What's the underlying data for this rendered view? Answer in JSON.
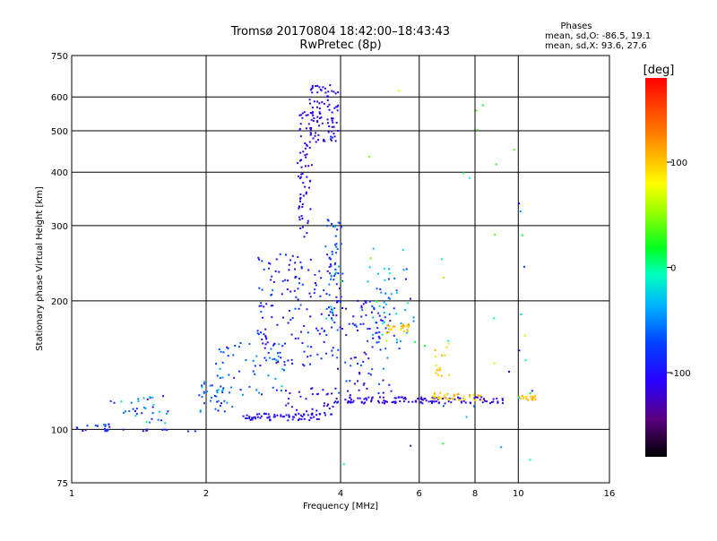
{
  "chart_data": {
    "type": "scatter",
    "title": "Tromsø 20170804 18:42:00–18:43:43",
    "subtitle": "RwPretec (8p)",
    "xlabel": "Frequency [MHz]",
    "ylabel": "Stationary phase Virtual Height [km]",
    "x_scale": "log",
    "y_scale": "log",
    "xlim": [
      1,
      16
    ],
    "ylim": [
      75,
      750
    ],
    "x_ticks": [
      1,
      2,
      4,
      6,
      8,
      10,
      16
    ],
    "x_tick_labels": [
      "1",
      "2",
      "4",
      "6",
      "8",
      "10",
      "16"
    ],
    "y_ticks": [
      75,
      100,
      200,
      300,
      400,
      500,
      600,
      750
    ],
    "y_tick_labels": [
      "75",
      "100",
      "200",
      "300",
      "400",
      "500",
      "600",
      "750"
    ],
    "grid": true,
    "legend": {
      "heading": "Phases",
      "line1": "mean, sd,O: -86.5, 19.1",
      "line2": "mean, sd,X:  93.6, 27.6",
      "placement": "top-right"
    },
    "colorbar": {
      "label": "[deg]",
      "min": -180,
      "max": 180,
      "ticks": [
        100,
        0,
        -100
      ],
      "tick_labels": [
        "100",
        "0",
        "-100"
      ]
    },
    "point_groups": [
      {
        "x_start": 1.0,
        "x_end": 1.22,
        "y_start": 100,
        "y_end": 103,
        "n": 12,
        "phase_mean": -80,
        "phase_sd": 30
      },
      {
        "x_start": 1.22,
        "x_end": 1.65,
        "y_start": 103,
        "y_end": 120,
        "n": 35,
        "phase_mean": -60,
        "phase_sd": 40
      },
      {
        "x_start": 1.05,
        "x_end": 1.9,
        "y_start": 99,
        "y_end": 100,
        "n": 18,
        "phase_mean": -100,
        "phase_sd": 30
      },
      {
        "x_start": 1.9,
        "x_end": 2.3,
        "y_start": 110,
        "y_end": 130,
        "n": 30,
        "phase_mean": -60,
        "phase_sd": 40
      },
      {
        "x_start": 2.1,
        "x_end": 3.0,
        "y_start": 120,
        "y_end": 160,
        "n": 60,
        "phase_mean": -60,
        "phase_sd": 40
      },
      {
        "x_start": 2.4,
        "x_end": 3.6,
        "y_start": 105,
        "y_end": 109,
        "n": 70,
        "phase_mean": -105,
        "phase_sd": 15
      },
      {
        "x_start": 3.0,
        "x_end": 3.95,
        "y_start": 108,
        "y_end": 125,
        "n": 40,
        "phase_mean": -110,
        "phase_sd": 20
      },
      {
        "x_start": 2.6,
        "x_end": 4.0,
        "y_start": 140,
        "y_end": 260,
        "n": 160,
        "phase_mean": -90,
        "phase_sd": 30
      },
      {
        "x_start": 3.2,
        "x_end": 3.45,
        "y_start": 280,
        "y_end": 560,
        "n": 70,
        "phase_mean": -110,
        "phase_sd": 15
      },
      {
        "x_start": 3.4,
        "x_end": 3.95,
        "y_start": 470,
        "y_end": 640,
        "n": 90,
        "phase_mean": -110,
        "phase_sd": 15
      },
      {
        "x_start": 3.7,
        "x_end": 4.05,
        "y_start": 180,
        "y_end": 310,
        "n": 50,
        "phase_mean": -70,
        "phase_sd": 35
      },
      {
        "x_start": 3.9,
        "x_end": 5.2,
        "y_start": 120,
        "y_end": 200,
        "n": 90,
        "phase_mean": -90,
        "phase_sd": 40
      },
      {
        "x_start": 4.6,
        "x_end": 5.9,
        "y_start": 150,
        "y_end": 240,
        "n": 50,
        "phase_mean": -40,
        "phase_sd": 60
      },
      {
        "x_start": 5.0,
        "x_end": 5.7,
        "y_start": 168,
        "y_end": 176,
        "n": 25,
        "phase_mean": 100,
        "phase_sd": 20
      },
      {
        "x_start": 4.1,
        "x_end": 9.3,
        "y_start": 115,
        "y_end": 119,
        "n": 120,
        "phase_mean": -110,
        "phase_sd": 15
      },
      {
        "x_start": 6.4,
        "x_end": 8.4,
        "y_start": 117,
        "y_end": 122,
        "n": 40,
        "phase_mean": 100,
        "phase_sd": 15
      },
      {
        "x_start": 6.5,
        "x_end": 7.1,
        "y_start": 130,
        "y_end": 160,
        "n": 15,
        "phase_mean": 100,
        "phase_sd": 15
      },
      {
        "x_start": 10.0,
        "x_end": 11.0,
        "y_start": 117,
        "y_end": 120,
        "n": 18,
        "phase_mean": 105,
        "phase_sd": 10
      },
      {
        "x_start": 4.0,
        "x_end": 11.0,
        "y_start": 80,
        "y_end": 620,
        "n": 45,
        "phase_mean": 0,
        "phase_sd": 90
      }
    ]
  }
}
